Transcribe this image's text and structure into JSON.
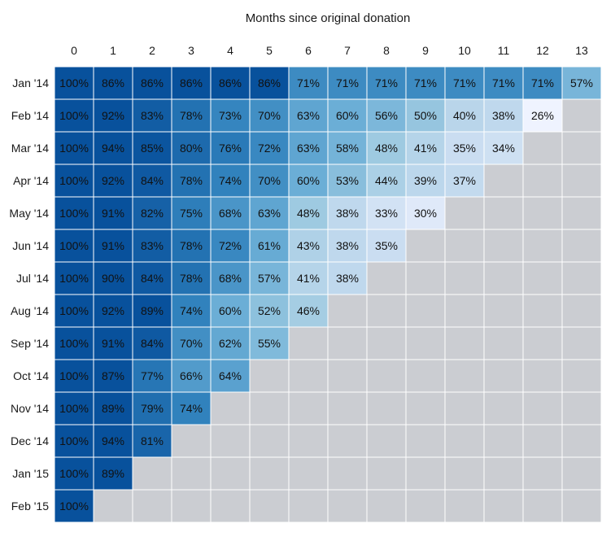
{
  "chart_data": {
    "type": "heatmap",
    "title": "Months since original donation",
    "x_ticks": [
      "0",
      "1",
      "2",
      "3",
      "4",
      "5",
      "6",
      "7",
      "8",
      "9",
      "10",
      "11",
      "12",
      "13"
    ],
    "y_ticks": [
      "Jan '14",
      "Feb '14",
      "Mar '14",
      "Apr '14",
      "May '14",
      "Jun '14",
      "Jul '14",
      "Aug '14",
      "Sep '14",
      "Oct '14",
      "Nov '14",
      "Dec '14",
      "Jan '15",
      "Feb '15"
    ],
    "value_suffix": "%",
    "values": [
      [
        100,
        86,
        86,
        86,
        86,
        86,
        71,
        71,
        71,
        71,
        71,
        71,
        71,
        57
      ],
      [
        100,
        92,
        83,
        78,
        73,
        70,
        63,
        60,
        56,
        50,
        40,
        38,
        26,
        null
      ],
      [
        100,
        94,
        85,
        80,
        76,
        72,
        63,
        58,
        48,
        41,
        35,
        34,
        null,
        null
      ],
      [
        100,
        92,
        84,
        78,
        74,
        70,
        60,
        53,
        44,
        39,
        37,
        null,
        null,
        null
      ],
      [
        100,
        91,
        82,
        75,
        68,
        63,
        48,
        38,
        33,
        30,
        null,
        null,
        null,
        null
      ],
      [
        100,
        91,
        83,
        78,
        72,
        61,
        43,
        38,
        35,
        null,
        null,
        null,
        null,
        null
      ],
      [
        100,
        90,
        84,
        78,
        68,
        57,
        41,
        38,
        null,
        null,
        null,
        null,
        null,
        null
      ],
      [
        100,
        92,
        89,
        74,
        60,
        52,
        46,
        null,
        null,
        null,
        null,
        null,
        null,
        null
      ],
      [
        100,
        91,
        84,
        70,
        62,
        55,
        null,
        null,
        null,
        null,
        null,
        null,
        null,
        null
      ],
      [
        100,
        87,
        77,
        66,
        64,
        null,
        null,
        null,
        null,
        null,
        null,
        null,
        null,
        null
      ],
      [
        100,
        89,
        79,
        74,
        null,
        null,
        null,
        null,
        null,
        null,
        null,
        null,
        null,
        null
      ],
      [
        100,
        94,
        81,
        null,
        null,
        null,
        null,
        null,
        null,
        null,
        null,
        null,
        null,
        null
      ],
      [
        100,
        89,
        null,
        null,
        null,
        null,
        null,
        null,
        null,
        null,
        null,
        null,
        null,
        null
      ],
      [
        100,
        null,
        null,
        null,
        null,
        null,
        null,
        null,
        null,
        null,
        null,
        null,
        null,
        null
      ]
    ],
    "empty_color": "#cbcdd2",
    "grid_color": "#ffffff",
    "color_scale": [
      {
        "v": 26,
        "color": "#eff3ff"
      },
      {
        "v": 36,
        "color": "#c6dbef"
      },
      {
        "v": 48,
        "color": "#9ecae1"
      },
      {
        "v": 60,
        "color": "#6baed6"
      },
      {
        "v": 74,
        "color": "#3182bd"
      },
      {
        "v": 86,
        "color": "#08519c"
      },
      {
        "v": 100,
        "color": "#08519c"
      }
    ]
  }
}
